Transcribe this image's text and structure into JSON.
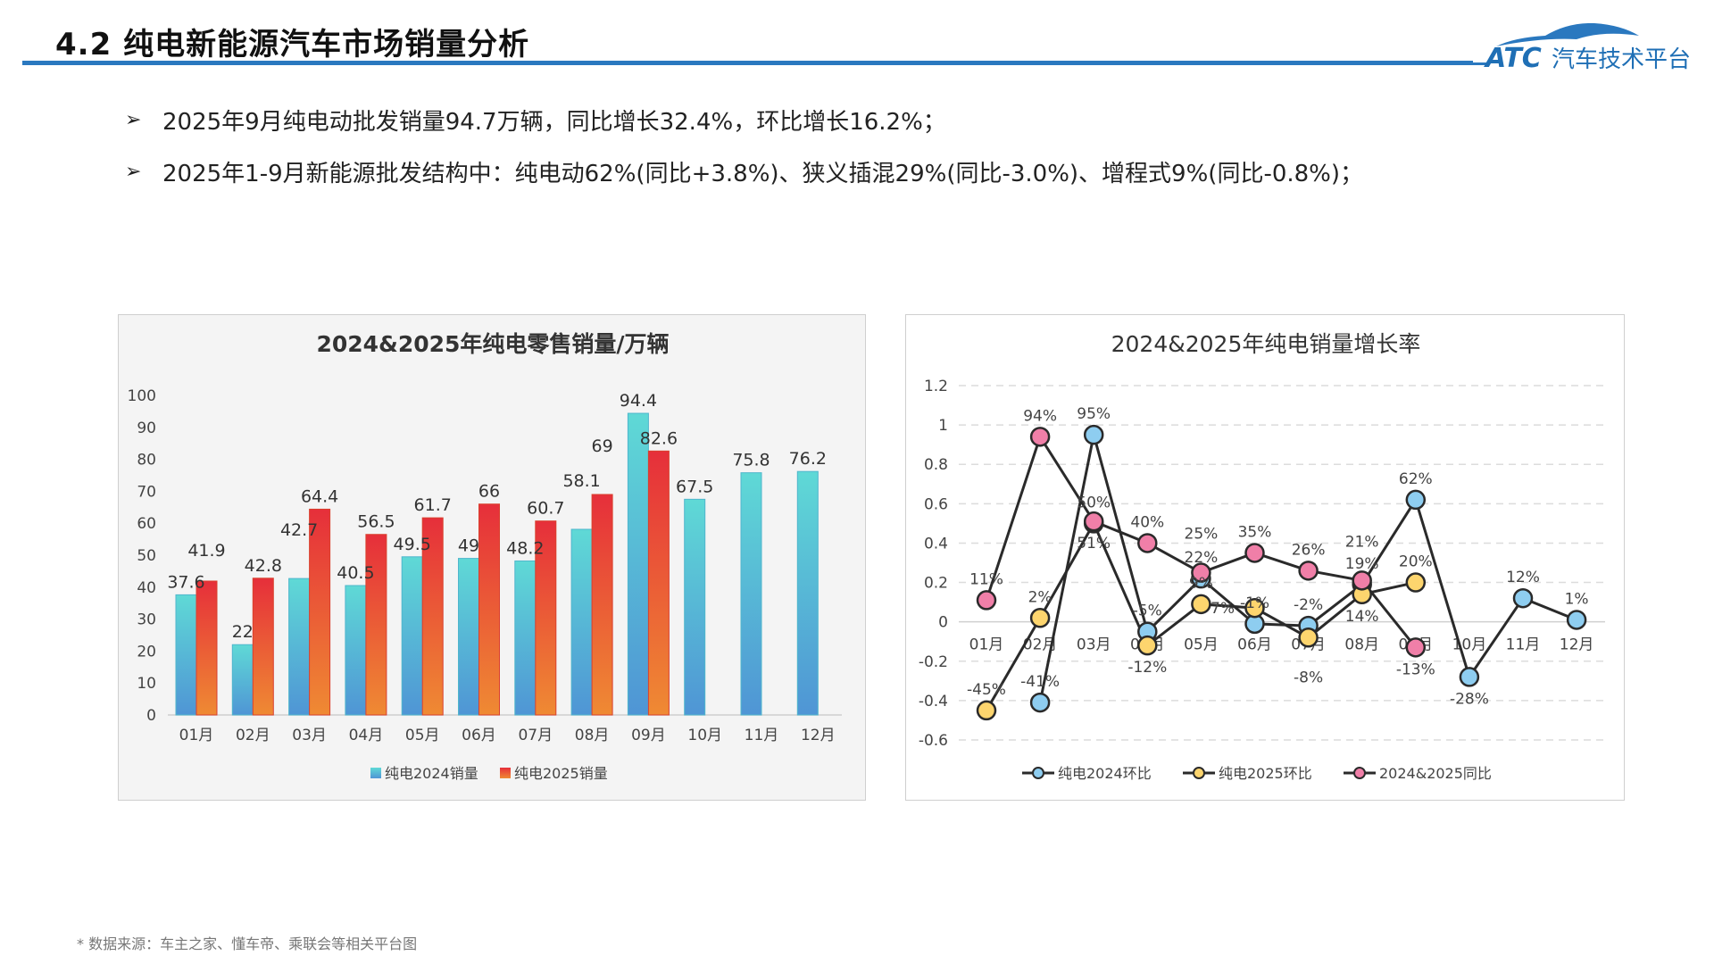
{
  "header": {
    "title": "4.2 纯电新能源汽车市场销量分析",
    "logo_text": "ATC汽车技术平台",
    "accent": "#2a78bf"
  },
  "bullets": [
    {
      "icon": "arrowhead-bullet-icon",
      "text": "2025年9月纯电动批发销量94.7万辆，同比增长32.4%，环比增长16.2%；"
    },
    {
      "icon": "arrowhead-bullet-icon",
      "text": "2025年1-9月新能源批发结构中：纯电动62%(同比+3.8%)、狭义插混29%(同比-3.0%)、增程式9%(同比-0.8%)；"
    }
  ],
  "footnote": "* 数据来源：车主之家、懂车帝、乘联会等相关平台图",
  "chart_data": [
    {
      "type": "bar",
      "title": "2024&2025年纯电零售销量/万辆",
      "categories": [
        "01月",
        "02月",
        "03月",
        "04月",
        "05月",
        "06月",
        "07月",
        "08月",
        "09月",
        "10月",
        "11月",
        "12月"
      ],
      "ylim": [
        0,
        100
      ],
      "yticks": [
        0,
        10,
        20,
        30,
        40,
        50,
        60,
        70,
        80,
        90,
        100
      ],
      "grid": false,
      "legend": "bottom",
      "series": [
        {
          "name": "纯电2024销量",
          "color_top": "#5fd9d6",
          "color_bottom": "#4f95d5",
          "values": [
            37.6,
            22,
            42.7,
            40.5,
            49.5,
            49,
            48.2,
            58.1,
            94.4,
            67.5,
            75.8,
            76.2
          ]
        },
        {
          "name": "纯电2025销量",
          "color_top": "#e62f3a",
          "color_bottom": "#ef8a33",
          "values": [
            41.9,
            42.8,
            64.4,
            56.5,
            61.7,
            66,
            60.7,
            69,
            82.6,
            null,
            null,
            null
          ]
        }
      ]
    },
    {
      "type": "line",
      "title": "2024&2025年纯电销量增长率",
      "categories": [
        "01月",
        "02月",
        "03月",
        "04月",
        "05月",
        "06月",
        "07月",
        "08月",
        "09月",
        "10月",
        "11月",
        "12月"
      ],
      "ylim": [
        -0.6,
        1.2
      ],
      "yticks": [
        "-0.6",
        "-0.4",
        "-0.2",
        "0",
        "0.2",
        "0.4",
        "0.6",
        "0.8",
        "1",
        "1.2"
      ],
      "grid": true,
      "legend": "bottom",
      "series": [
        {
          "name": "纯电2024环比",
          "color": "#8ecdf0",
          "values": [
            null,
            -0.41,
            0.95,
            -0.05,
            0.22,
            -0.01,
            -0.02,
            0.19,
            0.62,
            -0.28,
            0.12,
            0.01
          ],
          "labels": [
            null,
            "-41%",
            "95%",
            "-5%",
            "22%",
            "-1%",
            "-2%",
            "19%",
            "62%",
            "-28%",
            "12%",
            "1%"
          ]
        },
        {
          "name": "纯电2025环比",
          "color": "#fdd56e",
          "values": [
            -0.45,
            0.02,
            0.5,
            -0.12,
            0.09,
            0.07,
            -0.08,
            0.14,
            0.2,
            null,
            null,
            null
          ],
          "labels": [
            "-45%",
            "2%",
            "50%",
            "-12%",
            "9%",
            "7%",
            "-8%",
            "14%",
            "20%",
            null,
            null,
            null
          ]
        },
        {
          "name": "2024&2025同比",
          "color": "#f07fa8",
          "values": [
            0.11,
            0.94,
            0.51,
            0.4,
            0.25,
            0.35,
            0.26,
            0.21,
            -0.13,
            null,
            null,
            null
          ],
          "labels": [
            "11%",
            "94%",
            "51%",
            "40%",
            "25%",
            "35%",
            "26%",
            "21%",
            "-13%",
            null,
            null,
            null
          ]
        }
      ]
    }
  ]
}
